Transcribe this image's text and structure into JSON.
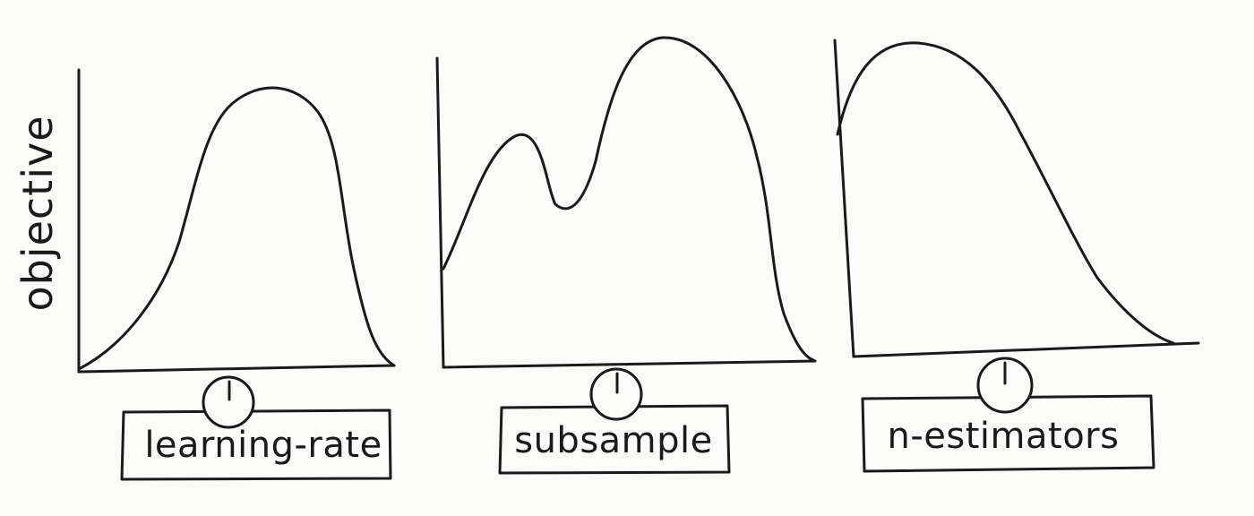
{
  "ylabel": "objective",
  "panels": [
    {
      "knob_label": "learning-rate"
    },
    {
      "knob_label": "subsample"
    },
    {
      "knob_label": "n-estimators"
    }
  ]
}
